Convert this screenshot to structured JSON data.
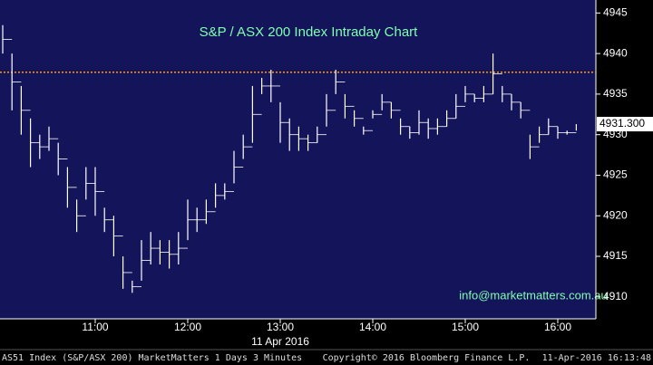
{
  "chart_data": {
    "type": "hilo",
    "title": "S&P / ASX 200 Index Intraday Chart",
    "watermark": "info@marketmatters.com.au",
    "date_label": "11 Apr 2016",
    "footer_left": "AS51 Index (S&P/ASX 200) MarketMatters 1 Days 3 Minutes",
    "footer_center": "Copyright© 2016 Bloomberg Finance L.P.",
    "footer_right": "11-Apr-2016 16:13:48",
    "categories": [
      null,
      null,
      null,
      null,
      null,
      null,
      null,
      null,
      null,
      null,
      "11:00",
      null,
      null,
      null,
      null,
      null,
      null,
      null,
      null,
      null,
      "12:00",
      null,
      null,
      null,
      null,
      null,
      null,
      null,
      null,
      null,
      "13:00",
      null,
      null,
      null,
      null,
      null,
      null,
      null,
      null,
      null,
      "14:00",
      null,
      null,
      null,
      null,
      null,
      null,
      null,
      null,
      null,
      "15:00",
      null,
      null,
      null,
      null,
      null,
      null,
      null,
      null,
      null,
      "16:00",
      null,
      null
    ],
    "series": [
      {
        "color": "#ffffff",
        "high": [
          4943.5,
          4940,
          4936,
          4932,
          4930,
          4931,
          4929,
          4926,
          4922,
          4926,
          4926,
          4921,
          4920,
          4915,
          4912,
          4917,
          4918,
          4917,
          4917,
          4918,
          4922,
          4921,
          4922,
          4924,
          4924,
          4928,
          4930,
          4936,
          4937,
          4938,
          4934,
          4932,
          4931,
          4930,
          4931,
          4935,
          4938,
          4935,
          4933,
          4931,
          4933,
          4935,
          4934,
          4932,
          4931,
          4933,
          4932,
          4932,
          4933,
          4935,
          4936,
          4935,
          4936,
          4940,
          4936,
          4935,
          4934,
          4930,
          4931,
          4932,
          4931,
          4930.5,
          4931.3
        ],
        "low": [
          4940,
          4933,
          4930,
          4926,
          4927,
          4928,
          4925,
          4921,
          4918,
          4922,
          4920,
          4918,
          4915,
          4911,
          4910.5,
          4912,
          4914,
          4914,
          4913.5,
          4914,
          4917,
          4918,
          4919,
          4921,
          4922,
          4924,
          4927,
          4929,
          4935,
          4934,
          4929,
          4928,
          4928,
          4928,
          4929,
          4931,
          4935,
          4932,
          4931,
          4930,
          4932,
          4933,
          4932,
          4930,
          4929.5,
          4930,
          4929.5,
          4930,
          4931,
          4932,
          4934,
          4934,
          4934,
          4935,
          4934,
          4933,
          4932,
          4927,
          4929,
          4930,
          4929.5,
          4930,
          4930.5
        ]
      }
    ],
    "reference_line": {
      "value": 4937.7,
      "color": "#ff9900"
    },
    "last_value": {
      "value": 4931.3,
      "label": "4931.300"
    },
    "ylim": [
      4907.3,
      4946.6
    ],
    "yticks": [
      4910,
      4915,
      4920,
      4925,
      4930,
      4935,
      4940,
      4945
    ],
    "background": "#14145a"
  }
}
